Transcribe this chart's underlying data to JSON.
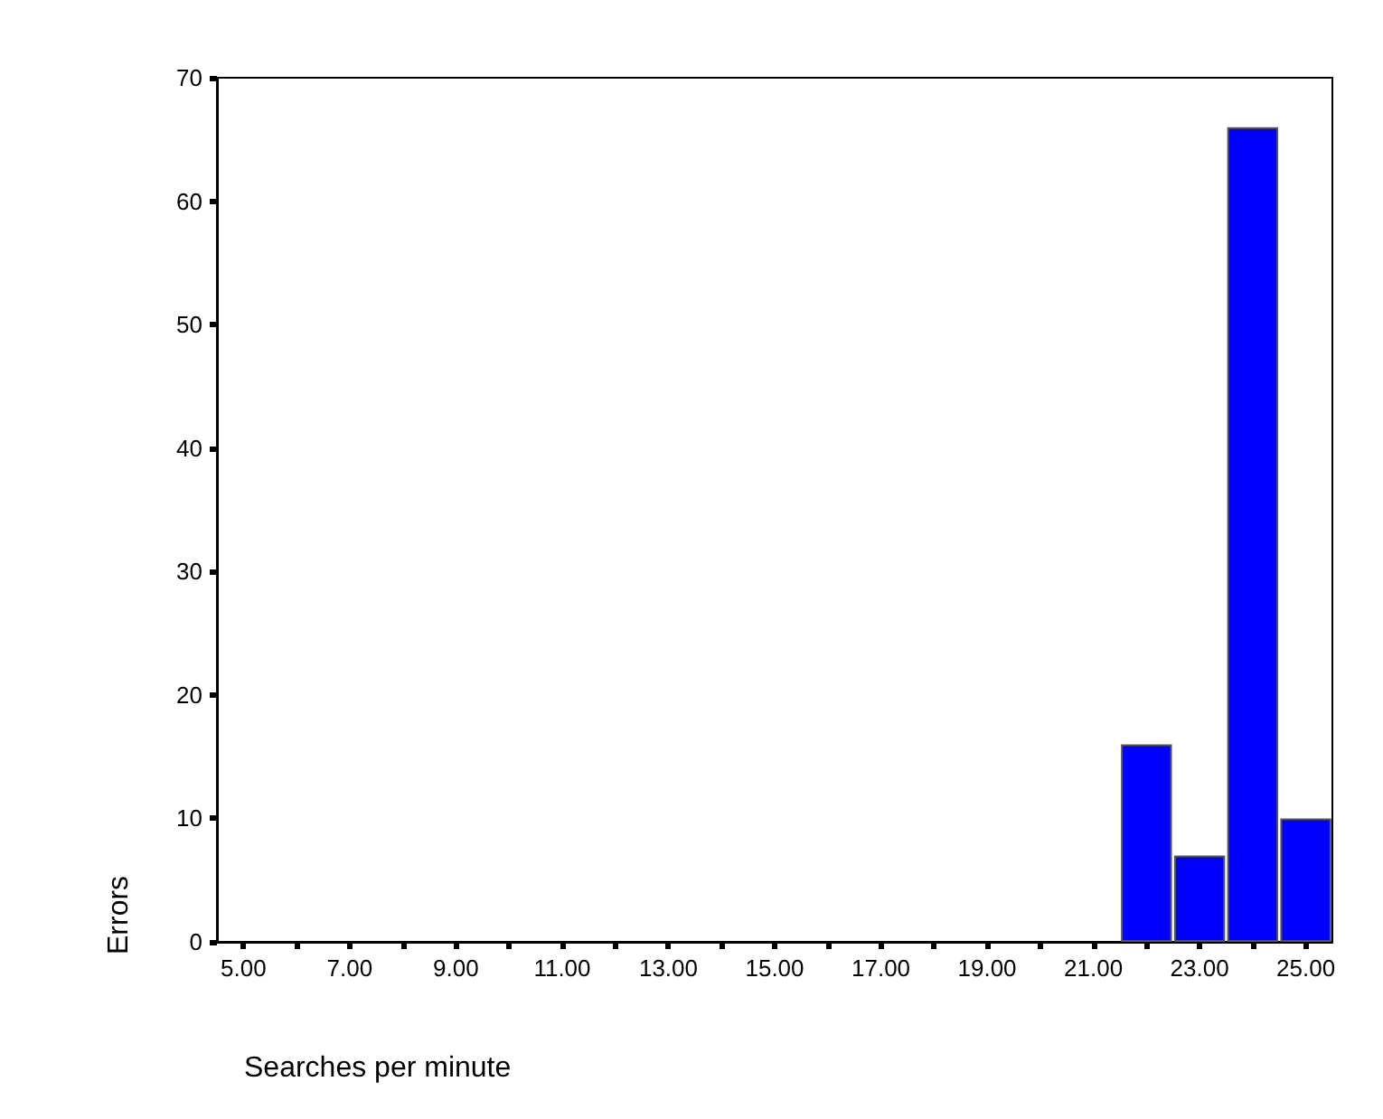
{
  "chart_data": {
    "type": "bar",
    "xlabel": "Searches per minute",
    "ylabel": "Errors",
    "categories": [
      "5.00",
      null,
      "7.00",
      null,
      "9.00",
      null,
      "11.00",
      null,
      "13.00",
      null,
      "15.00",
      null,
      "17.00",
      null,
      "19.00",
      null,
      "21.00",
      null,
      "23.00",
      null,
      "25.00"
    ],
    "values": [
      0,
      0,
      0,
      0,
      0,
      0,
      0,
      0,
      0,
      0,
      0,
      0,
      0,
      0,
      0,
      0,
      0,
      16,
      7,
      66,
      10
    ],
    "color": "#0000ff",
    "ylim": [
      0,
      70
    ],
    "yticks": [
      0,
      10,
      20,
      30,
      40,
      50,
      60,
      70
    ]
  }
}
